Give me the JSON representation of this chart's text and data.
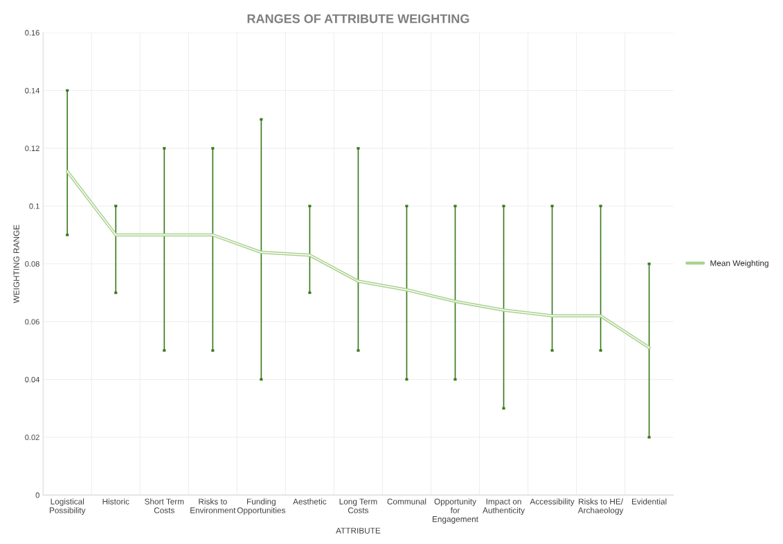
{
  "chart_data": {
    "type": "line",
    "title": "RANGES OF ATTRIBUTE WEIGHTING",
    "xlabel": "ATTRIBUTE",
    "ylabel": "WEIGHTING RANGE",
    "categories": [
      "Logistical Possibility",
      "Historic",
      "Short Term Costs",
      "Risks to Environment",
      "Funding Opportunities",
      "Aesthetic",
      "Long Term Costs",
      "Communal",
      "Opportunity for Engagement",
      "Impact on Authenticity",
      "Accessibility",
      "Risks to HE/ Archaeology",
      "Evidential"
    ],
    "series": [
      {
        "name": "Mean Weighting",
        "color": "#a9d18e",
        "values": [
          0.112,
          0.09,
          0.09,
          0.09,
          0.084,
          0.083,
          0.074,
          0.071,
          0.067,
          0.064,
          0.062,
          0.062,
          0.051
        ],
        "errors": [
          [
            0.09,
            0.14
          ],
          [
            0.07,
            0.1
          ],
          [
            0.05,
            0.12
          ],
          [
            0.05,
            0.12
          ],
          [
            0.04,
            0.13
          ],
          [
            0.07,
            0.1
          ],
          [
            0.05,
            0.12
          ],
          [
            0.04,
            0.1
          ],
          [
            0.04,
            0.1
          ],
          [
            0.03,
            0.1
          ],
          [
            0.05,
            0.1
          ],
          [
            0.05,
            0.1
          ],
          [
            0.02,
            0.08
          ]
        ]
      }
    ],
    "ylim": [
      0,
      0.16
    ],
    "yticks": [
      0,
      0.02,
      0.04,
      0.06,
      0.08,
      0.1,
      0.12,
      0.14,
      0.16
    ],
    "grid": true,
    "legend": "right",
    "marker": "none",
    "line_style": "solid"
  }
}
